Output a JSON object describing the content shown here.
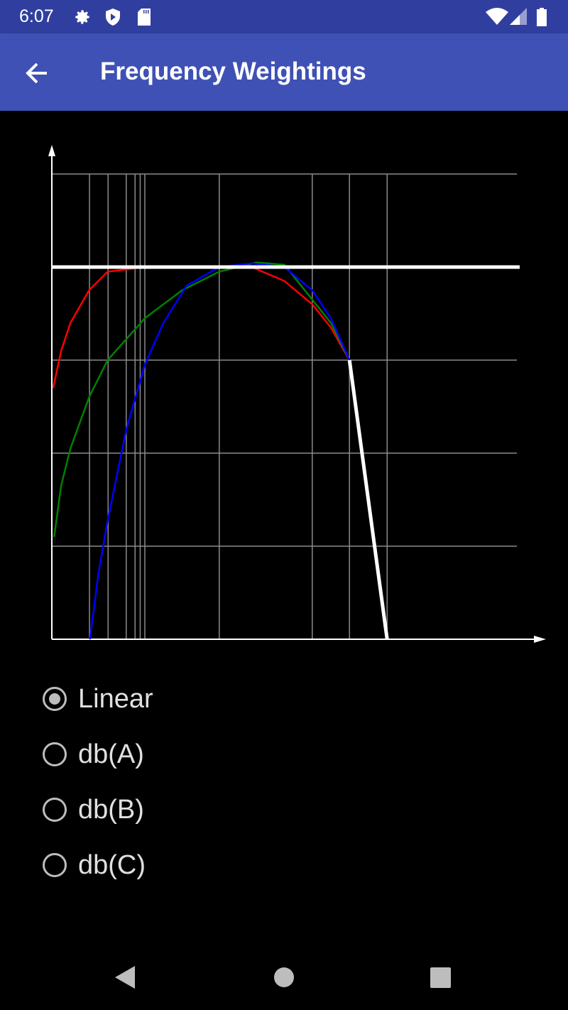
{
  "status_bar": {
    "time": "6:07",
    "icons": [
      "gear-icon",
      "shield-play-icon",
      "sd-card-icon",
      "wifi-icon",
      "cell-signal-icon",
      "battery-icon"
    ]
  },
  "app_bar": {
    "title": "Frequency Weightings",
    "back_icon": "arrow-left-icon"
  },
  "chart_data": {
    "type": "line",
    "title": "",
    "xlabel": "",
    "ylabel": "",
    "xlim": [
      0,
      100
    ],
    "ylim": [
      0,
      100
    ],
    "grid": true,
    "x_gridlines": [
      8.1,
      12.1,
      16,
      17.9,
      19,
      20,
      36,
      56,
      64,
      72.1
    ],
    "y_gridlines": [
      20,
      40,
      60,
      80,
      100
    ],
    "series": [
      {
        "key": "linear",
        "color": "#ffffff",
        "points": [
          [
            0,
            80
          ],
          [
            100,
            80
          ]
        ]
      },
      {
        "key": "cutoff",
        "color": "#ffffff",
        "points": [
          [
            64,
            60
          ],
          [
            72.1,
            0
          ]
        ]
      },
      {
        "key": "A",
        "color": "#0000ff",
        "points": [
          [
            8.2,
            0
          ],
          [
            10,
            14
          ],
          [
            12,
            25.5
          ],
          [
            16,
            45
          ],
          [
            20,
            59
          ],
          [
            24,
            68
          ],
          [
            29,
            76
          ],
          [
            36,
            80
          ],
          [
            43,
            80.8
          ],
          [
            50,
            80
          ],
          [
            56,
            75
          ],
          [
            60,
            69
          ],
          [
            64,
            60
          ]
        ]
      },
      {
        "key": "B",
        "color": "#008000",
        "points": [
          [
            0.5,
            22
          ],
          [
            2,
            33
          ],
          [
            4,
            41
          ],
          [
            8,
            52
          ],
          [
            12,
            60
          ],
          [
            20,
            69
          ],
          [
            28,
            75
          ],
          [
            36,
            79
          ],
          [
            44,
            81
          ],
          [
            50,
            80.5
          ],
          [
            56,
            73
          ],
          [
            60,
            68
          ],
          [
            64,
            60
          ]
        ]
      },
      {
        "key": "C",
        "color": "#ff0000",
        "points": [
          [
            0.3,
            54
          ],
          [
            2,
            62
          ],
          [
            4,
            68
          ],
          [
            8,
            75
          ],
          [
            12,
            79
          ],
          [
            20,
            80
          ],
          [
            36,
            80
          ],
          [
            43,
            80
          ],
          [
            50,
            77
          ],
          [
            56,
            72
          ],
          [
            60,
            67
          ],
          [
            64,
            60
          ]
        ]
      }
    ]
  },
  "options": [
    {
      "label": "Linear",
      "selected": true
    },
    {
      "label": "db(A)",
      "selected": false
    },
    {
      "label": "db(B)",
      "selected": false
    },
    {
      "label": "db(C)",
      "selected": false
    }
  ],
  "nav_bar": {
    "icons": [
      "back-triangle-icon",
      "home-circle-icon",
      "recents-square-icon"
    ]
  }
}
